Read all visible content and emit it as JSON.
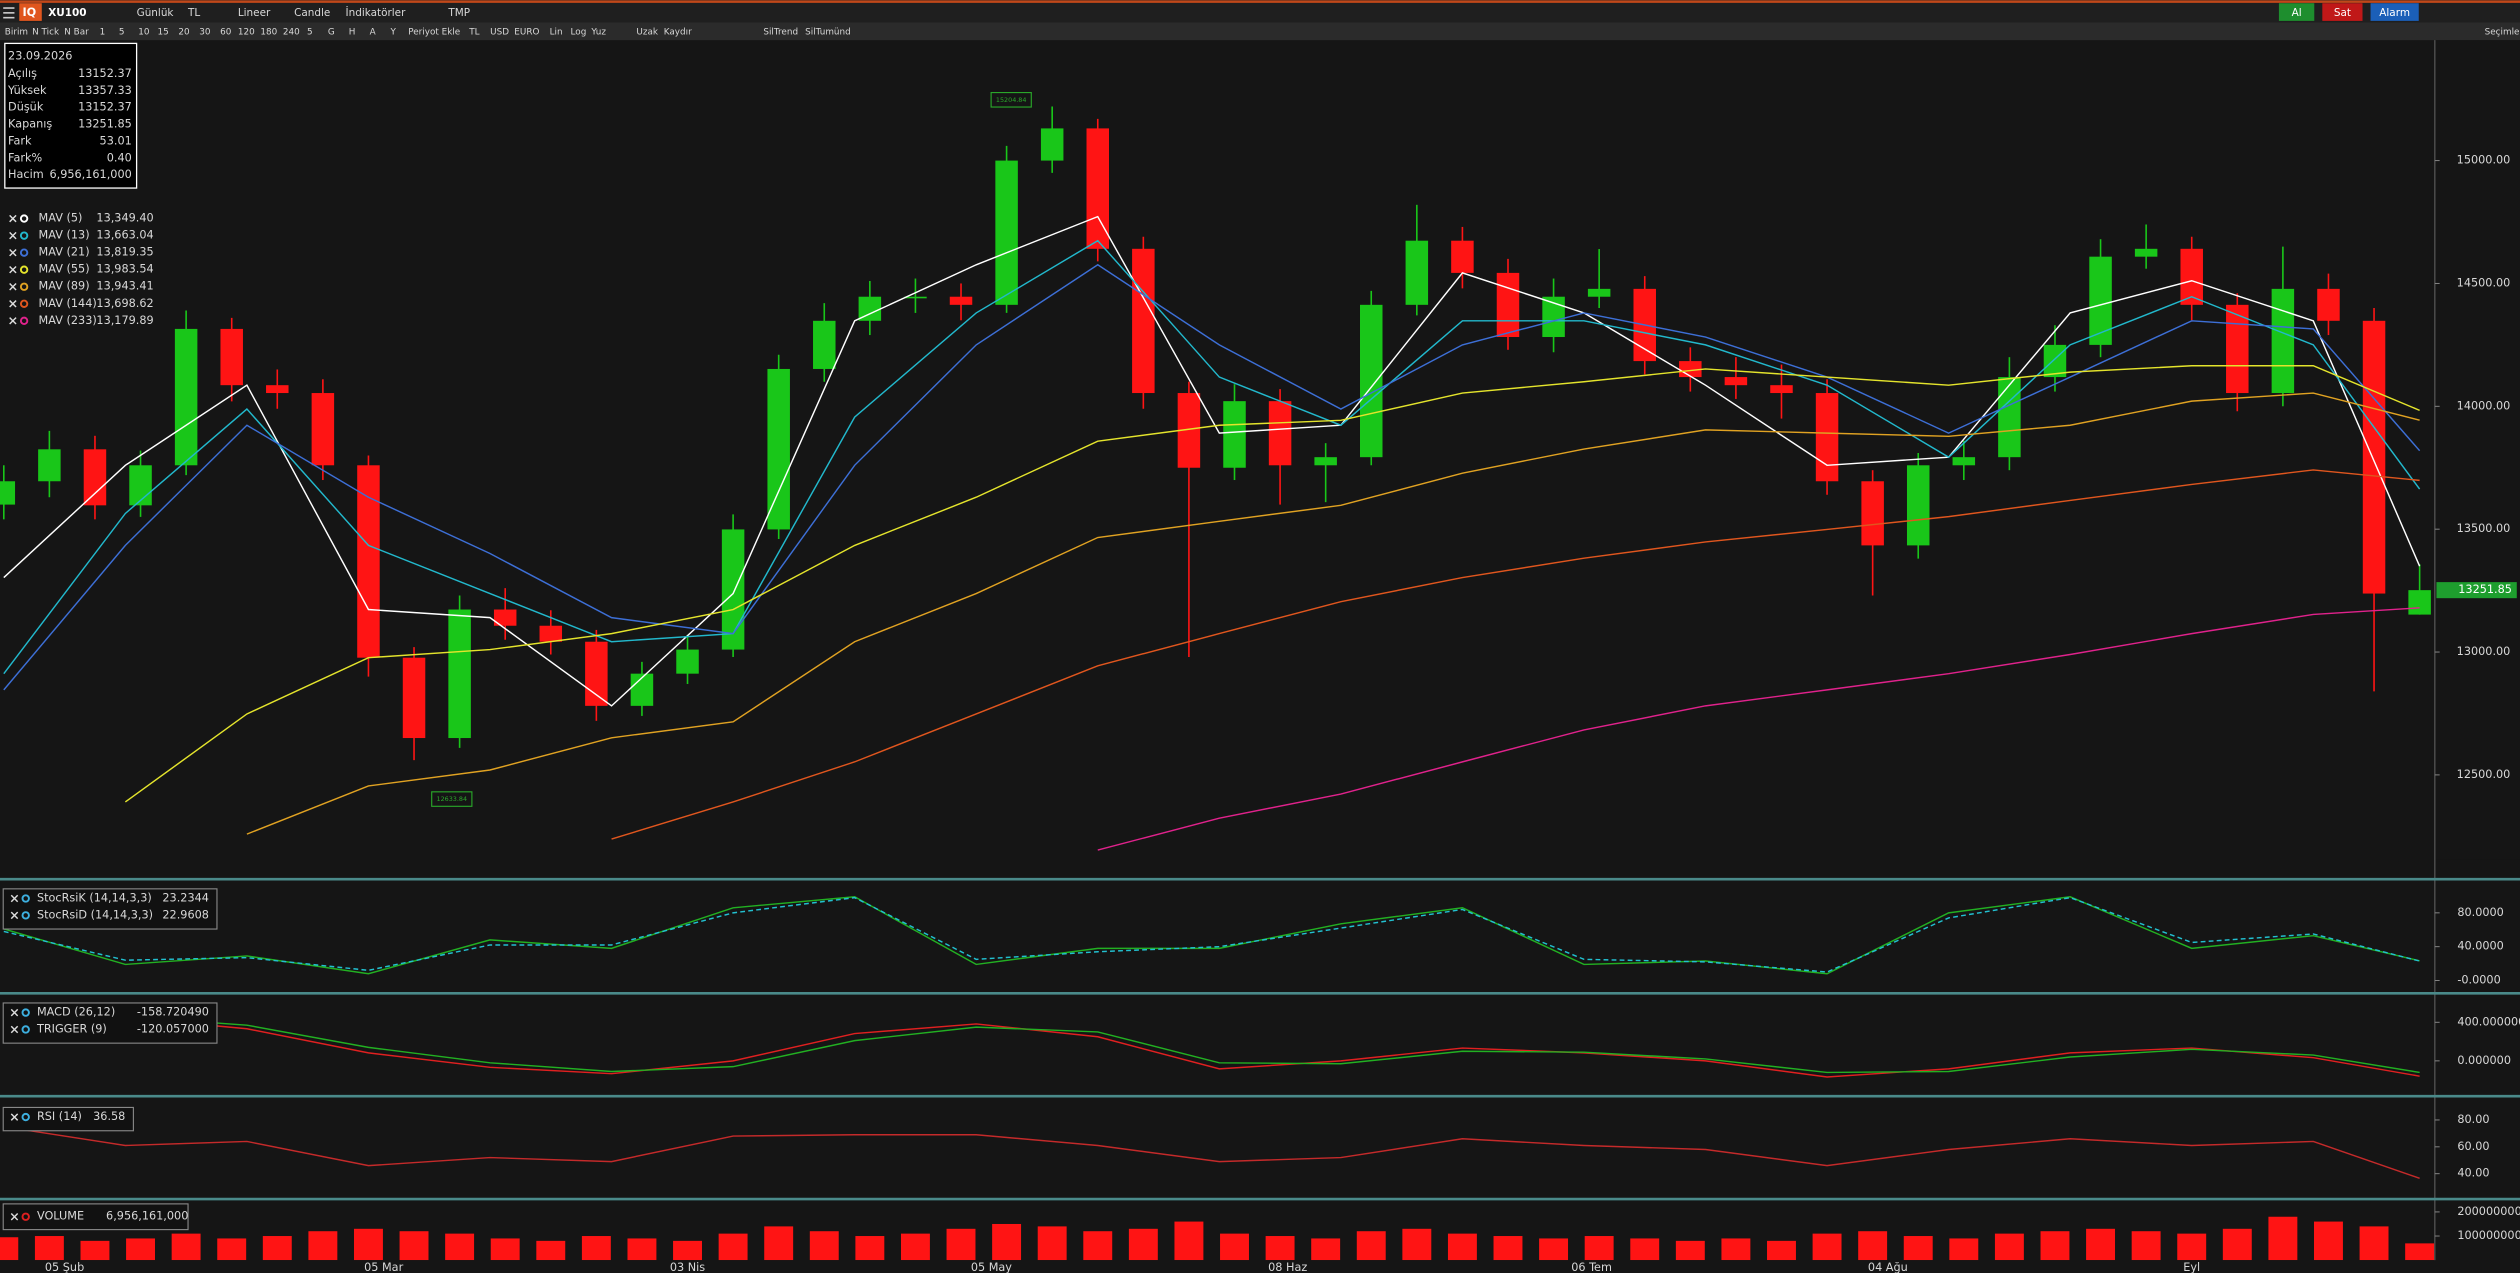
{
  "toolbar": {
    "symbol": "XU100",
    "row1": [
      "Günlük",
      "TL",
      "Lineer",
      "Candle",
      "İndikatörler",
      "TMP"
    ],
    "row2": [
      "Birim",
      "N Tick",
      "N Bar",
      "1",
      "5",
      "10",
      "15",
      "20",
      "30",
      "60",
      "120",
      "180",
      "240",
      "5",
      "G",
      "H",
      "A",
      "Y",
      "Periyot Ekle",
      "TL",
      "USD",
      "EURO",
      "Lin",
      "Log",
      "Yuz",
      "Uzak",
      "Kaydır",
      "SilTrend",
      "SilTumünd"
    ],
    "buttons": [
      {
        "text": "Al",
        "color": "#1e8e2e"
      },
      {
        "text": "Sat",
        "color": "#c01818"
      },
      {
        "text": "Alarm",
        "color": "#1b5fb8"
      }
    ],
    "corner": "Seçimle"
  },
  "chart_data": [
    {
      "type": "candlestick",
      "info": {
        "date": "23.09.2026",
        "rows": [
          {
            "label": "Açılış",
            "value": "13152.37"
          },
          {
            "label": "Yüksek",
            "value": "13357.33"
          },
          {
            "label": "Düşük",
            "value": "13152.37"
          },
          {
            "label": "Kapanış",
            "value": "13251.85"
          },
          {
            "label": "Fark",
            "value": "53.01"
          },
          {
            "label": "Fark%",
            "value": "0.40"
          },
          {
            "label": "Hacim",
            "value": "6,956,161,000"
          }
        ]
      },
      "x": [
        0,
        3,
        6,
        9,
        12,
        15,
        18,
        21,
        24,
        27,
        30,
        33,
        36,
        39,
        42,
        45,
        48,
        51,
        54,
        57,
        60,
        63,
        66,
        69,
        72,
        75,
        78,
        81,
        84,
        87,
        90,
        93,
        96,
        99,
        102,
        105,
        108,
        111,
        114,
        117,
        120,
        123,
        126,
        129,
        132,
        135,
        138,
        141,
        144,
        147,
        150,
        153,
        156,
        159
      ],
      "open": [
        13600,
        13695,
        13825,
        13597,
        13760,
        14315,
        14086,
        14054,
        13760,
        12977,
        12650,
        13173,
        13107,
        13042,
        12781,
        12912,
        13010,
        13499,
        14152,
        14348,
        14446,
        14446,
        14413,
        15000,
        15131,
        14641,
        14054,
        13750,
        14021,
        13760,
        13793,
        14413,
        14674,
        14543,
        14282,
        14446,
        14478,
        14184,
        14119,
        14086,
        14054,
        13695,
        13434,
        13760,
        13793,
        14119,
        14250,
        14609,
        14641,
        14413,
        14054,
        14478,
        14348,
        13152.37
      ],
      "high": [
        13760,
        13900,
        13880,
        13820,
        14390,
        14360,
        14150,
        14110,
        13800,
        13020,
        13230,
        13260,
        13170,
        13090,
        12960,
        13070,
        13560,
        14210,
        14420,
        14510,
        14520,
        14500,
        15060,
        15220,
        15170,
        14690,
        14100,
        14090,
        14070,
        13850,
        14470,
        14820,
        14730,
        14600,
        14520,
        14640,
        14530,
        14240,
        14200,
        14170,
        14110,
        13740,
        13810,
        13860,
        14200,
        14330,
        14680,
        14740,
        14690,
        14460,
        14650,
        14540,
        14400,
        13357.33
      ],
      "low": [
        13540,
        13630,
        13540,
        13550,
        13720,
        14020,
        13990,
        13700,
        12900,
        12560,
        12610,
        13050,
        12990,
        12720,
        12740,
        12870,
        12980,
        13460,
        14100,
        14290,
        14380,
        14350,
        14380,
        14950,
        14590,
        13990,
        12980,
        13700,
        13600,
        13610,
        13760,
        14370,
        14480,
        14230,
        14220,
        14400,
        14130,
        14060,
        14030,
        13950,
        13640,
        13230,
        13380,
        13700,
        13740,
        14060,
        14200,
        14560,
        14350,
        13980,
        14000,
        14290,
        12840,
        13152.37
      ],
      "close": [
        13695,
        13825,
        13597,
        13760,
        14315,
        14086,
        14054,
        13760,
        12977,
        12650,
        13173,
        13107,
        13042,
        12781,
        12912,
        13010,
        13499,
        14152,
        14348,
        14446,
        14446,
        14413,
        15000,
        15131,
        14641,
        14054,
        13750,
        14021,
        13760,
        13793,
        14413,
        14674,
        14543,
        14282,
        14446,
        14478,
        14184,
        14119,
        14086,
        14054,
        13695,
        13434,
        13760,
        13793,
        14119,
        14250,
        14609,
        14641,
        14413,
        14054,
        14478,
        14348,
        13238,
        13251.85
      ],
      "up_color": "#19c619",
      "down_color": "#ff1414",
      "last_price_label": "13251.85",
      "annotations": [
        {
          "text": "15204.84",
          "x": 69,
          "value": 15204.84
        },
        {
          "text": "12633.84",
          "x": 27,
          "value": 12633.84
        }
      ],
      "xlim": [
        -0.25,
        160
      ],
      "ylim": [
        12154,
        15490
      ],
      "yticks": [
        {
          "value": 15000,
          "label": "15000.00"
        },
        {
          "value": 14500,
          "label": "14500.00"
        },
        {
          "value": 14000,
          "label": "14000.00"
        },
        {
          "value": 13500,
          "label": "13500.00"
        },
        {
          "value": 13000,
          "label": "13000.00"
        },
        {
          "value": 12500,
          "label": "12500.00"
        }
      ],
      "xticks": [
        {
          "value": 4,
          "label": "05 Şub"
        },
        {
          "value": 25,
          "label": "05 Mar"
        },
        {
          "value": 45,
          "label": "03 Nis"
        },
        {
          "value": 65,
          "label": "05 May"
        },
        {
          "value": 84.5,
          "label": "08 Haz"
        },
        {
          "value": 104.5,
          "label": "06 Tem"
        },
        {
          "value": 124,
          "label": "04 Ağu"
        },
        {
          "value": 144,
          "label": "Eyl"
        }
      ],
      "ma": {
        "x": [
          0,
          8,
          16,
          24,
          32,
          40,
          48,
          56,
          64,
          72,
          80,
          88,
          96,
          104,
          112,
          120,
          128,
          136,
          144,
          152,
          159
        ],
        "series": [
          {
            "name": "MAV (5)",
            "color": "#ffffff",
            "value_label": "13,349.40",
            "values": [
              13303,
              13760,
              14086,
              13173,
              13140,
              12781,
              13238,
              14348,
              14576,
              14772,
              13891,
              13923,
              14543,
              14380,
              14086,
              13760,
              13793,
              14380,
              14511,
              14348,
              13349.4
            ]
          },
          {
            "name": "MAV (13)",
            "color": "#22b8cc",
            "value_label": "13,663.04",
            "values": [
              12912,
              13564,
              13989,
              13434,
              13238,
              13042,
              13075,
              13956,
              14380,
              14674,
              14119,
              13923,
              14348,
              14348,
              14250,
              14086,
              13793,
              14250,
              14446,
              14250,
              13663.04
            ]
          },
          {
            "name": "MAV (21)",
            "color": "#3d6fd6",
            "value_label": "13,819.35",
            "values": [
              12846,
              13434,
              13923,
              13630,
              13401,
              13140,
              13075,
              13760,
              14250,
              14576,
              14250,
              13989,
              14250,
              14380,
              14282,
              14119,
              13891,
              14119,
              14348,
              14315,
              13819.35
            ]
          },
          {
            "name": "MAV (55)",
            "color": "#e4e42c",
            "value_label": "13,983.54",
            "values": [
              null,
              12390,
              12748,
              12977,
              13010,
              13075,
              13173,
              13434,
              13630,
              13858,
              13923,
              13943,
              14054,
              14100,
              14152,
              14119,
              14086,
              14139,
              14165,
              14165,
              13983.54
            ]
          },
          {
            "name": "MAV (89)",
            "color": "#e0a222",
            "value_label": "13,943.41",
            "values": [
              null,
              null,
              12259,
              12455,
              12520,
              12651,
              12716,
              13042,
              13238,
              13466,
              13532,
              13597,
              13728,
              13826,
              13904,
              13891,
              13878,
              13923,
              14021,
              14054,
              13943.41
            ]
          },
          {
            "name": "MAV (144)",
            "color": "#e0561e",
            "value_label": "13,698.62",
            "values": [
              null,
              null,
              null,
              null,
              null,
              12239,
              12390,
              12553,
              12748,
              12944,
              13075,
              13205,
              13303,
              13382,
              13448,
              13499,
              13551,
              13617,
              13682,
              13741,
              13698.62
            ]
          },
          {
            "name": "MAV (233)",
            "color": "#e0228c",
            "value_label": "13,179.89",
            "values": [
              null,
              null,
              null,
              null,
              null,
              null,
              null,
              null,
              null,
              12194,
              12324,
              12422,
              12553,
              12683,
              12781,
              12846,
              12912,
              12990,
              13075,
              13153,
              13179.89
            ]
          }
        ]
      }
    },
    {
      "type": "line",
      "xlim": [
        -0.25,
        160
      ],
      "ylim": [
        -9.5,
        116
      ],
      "yticks": [
        {
          "value": 80,
          "label": "80.0000"
        },
        {
          "value": 40,
          "label": "40.0000"
        },
        {
          "value": 0,
          "label": "-0.0000"
        }
      ],
      "x": [
        0,
        8,
        16,
        24,
        32,
        40,
        48,
        56,
        64,
        72,
        80,
        88,
        96,
        104,
        112,
        120,
        128,
        136,
        144,
        152,
        159
      ],
      "series": [
        {
          "name": "StocRsiK (14,14,3,3)",
          "color": "#22b022",
          "value_label": "23.2344",
          "values": [
            61,
            19,
            29,
            8,
            48,
            38,
            86,
            99,
            19,
            38,
            38,
            67,
            86,
            19,
            23,
            8,
            80,
            99,
            38,
            53,
            23.2344
          ]
        },
        {
          "name": "StocRsiD (14,14,3,3)",
          "color": "#22c0d0",
          "dashed": true,
          "value_label": "22.9608",
          "values": [
            58,
            24,
            27,
            12,
            42,
            42,
            80,
            98,
            25,
            34,
            40,
            62,
            84,
            25,
            22,
            10,
            74,
            98,
            45,
            55,
            22.9608
          ]
        }
      ]
    },
    {
      "type": "line",
      "xlim": [
        -0.25,
        160
      ],
      "ylim": [
        -333,
        667
      ],
      "yticks": [
        {
          "value": 400,
          "label": "400.000000"
        },
        {
          "value": 0,
          "label": "0.000000"
        }
      ],
      "x": [
        0,
        8,
        16,
        24,
        32,
        40,
        48,
        56,
        64,
        72,
        80,
        88,
        96,
        104,
        112,
        120,
        128,
        136,
        144,
        152,
        159
      ],
      "series": [
        {
          "name": "MACD (26,12)",
          "color": "#e02020",
          "value_label": "-158.720490",
          "values": [
            500,
            450,
            333,
            83,
            -67,
            -133,
            0,
            283,
            383,
            250,
            -83,
            0,
            133,
            83,
            0,
            -167,
            -83,
            83,
            133,
            33,
            -158.72049
          ]
        },
        {
          "name": "TRIGGER (9)",
          "color": "#22b022",
          "value_label": "-120.057000",
          "values": [
            470,
            460,
            370,
            140,
            -20,
            -110,
            -60,
            210,
            350,
            300,
            -20,
            -30,
            100,
            90,
            20,
            -120,
            -110,
            40,
            120,
            60,
            -120.057
          ]
        }
      ]
    },
    {
      "type": "line",
      "xlim": [
        -0.25,
        160
      ],
      "ylim": [
        24.7,
        94.1
      ],
      "yticks": [
        {
          "value": 80,
          "label": "80.00"
        },
        {
          "value": 60,
          "label": "60.00"
        },
        {
          "value": 40,
          "label": "40.00"
        }
      ],
      "x": [
        0,
        8,
        16,
        24,
        32,
        40,
        48,
        56,
        64,
        72,
        80,
        88,
        96,
        104,
        112,
        120,
        128,
        136,
        144,
        152,
        159
      ],
      "series": [
        {
          "name": "RSI (14)",
          "color": "#c42a2a",
          "value_label": "36.58",
          "values": [
            75,
            61,
            64,
            46,
            52,
            49,
            68,
            69,
            69,
            61,
            49,
            52,
            66,
            61,
            58,
            46,
            58,
            66,
            61,
            64,
            36.58
          ]
        }
      ]
    },
    {
      "type": "bar",
      "xlim": [
        -0.25,
        160
      ],
      "ylim": [
        0,
        24000000000
      ],
      "yticks": [
        20000000000,
        10000000000
      ],
      "name": "VOLUME",
      "value_label": "6,956,161,000",
      "color": "#ff1414",
      "x": [
        0,
        3,
        6,
        9,
        12,
        15,
        18,
        21,
        24,
        27,
        30,
        33,
        36,
        39,
        42,
        45,
        48,
        51,
        54,
        57,
        60,
        63,
        66,
        69,
        72,
        75,
        78,
        81,
        84,
        87,
        90,
        93,
        96,
        99,
        102,
        105,
        108,
        111,
        114,
        117,
        120,
        123,
        126,
        129,
        132,
        135,
        138,
        141,
        144,
        147,
        150,
        153,
        156,
        159
      ],
      "values": [
        9500000000,
        10000000000,
        8000000000,
        9000000000,
        11000000000,
        9000000000,
        10000000000,
        12000000000,
        13000000000,
        12000000000,
        11000000000,
        9000000000,
        8000000000,
        10000000000,
        9000000000,
        8000000000,
        11000000000,
        14000000000,
        12000000000,
        10000000000,
        11000000000,
        13000000000,
        15000000000,
        14000000000,
        12000000000,
        13000000000,
        16000000000,
        11000000000,
        10000000000,
        9000000000,
        12000000000,
        13000000000,
        11000000000,
        10000000000,
        9000000000,
        10000000000,
        9000000000,
        8000000000,
        9000000000,
        8000000000,
        11000000000,
        12000000000,
        10000000000,
        9000000000,
        11000000000,
        12000000000,
        13000000000,
        12000000000,
        11000000000,
        13000000000,
        18000000000,
        16000000000,
        14000000000,
        6956161000
      ]
    }
  ]
}
